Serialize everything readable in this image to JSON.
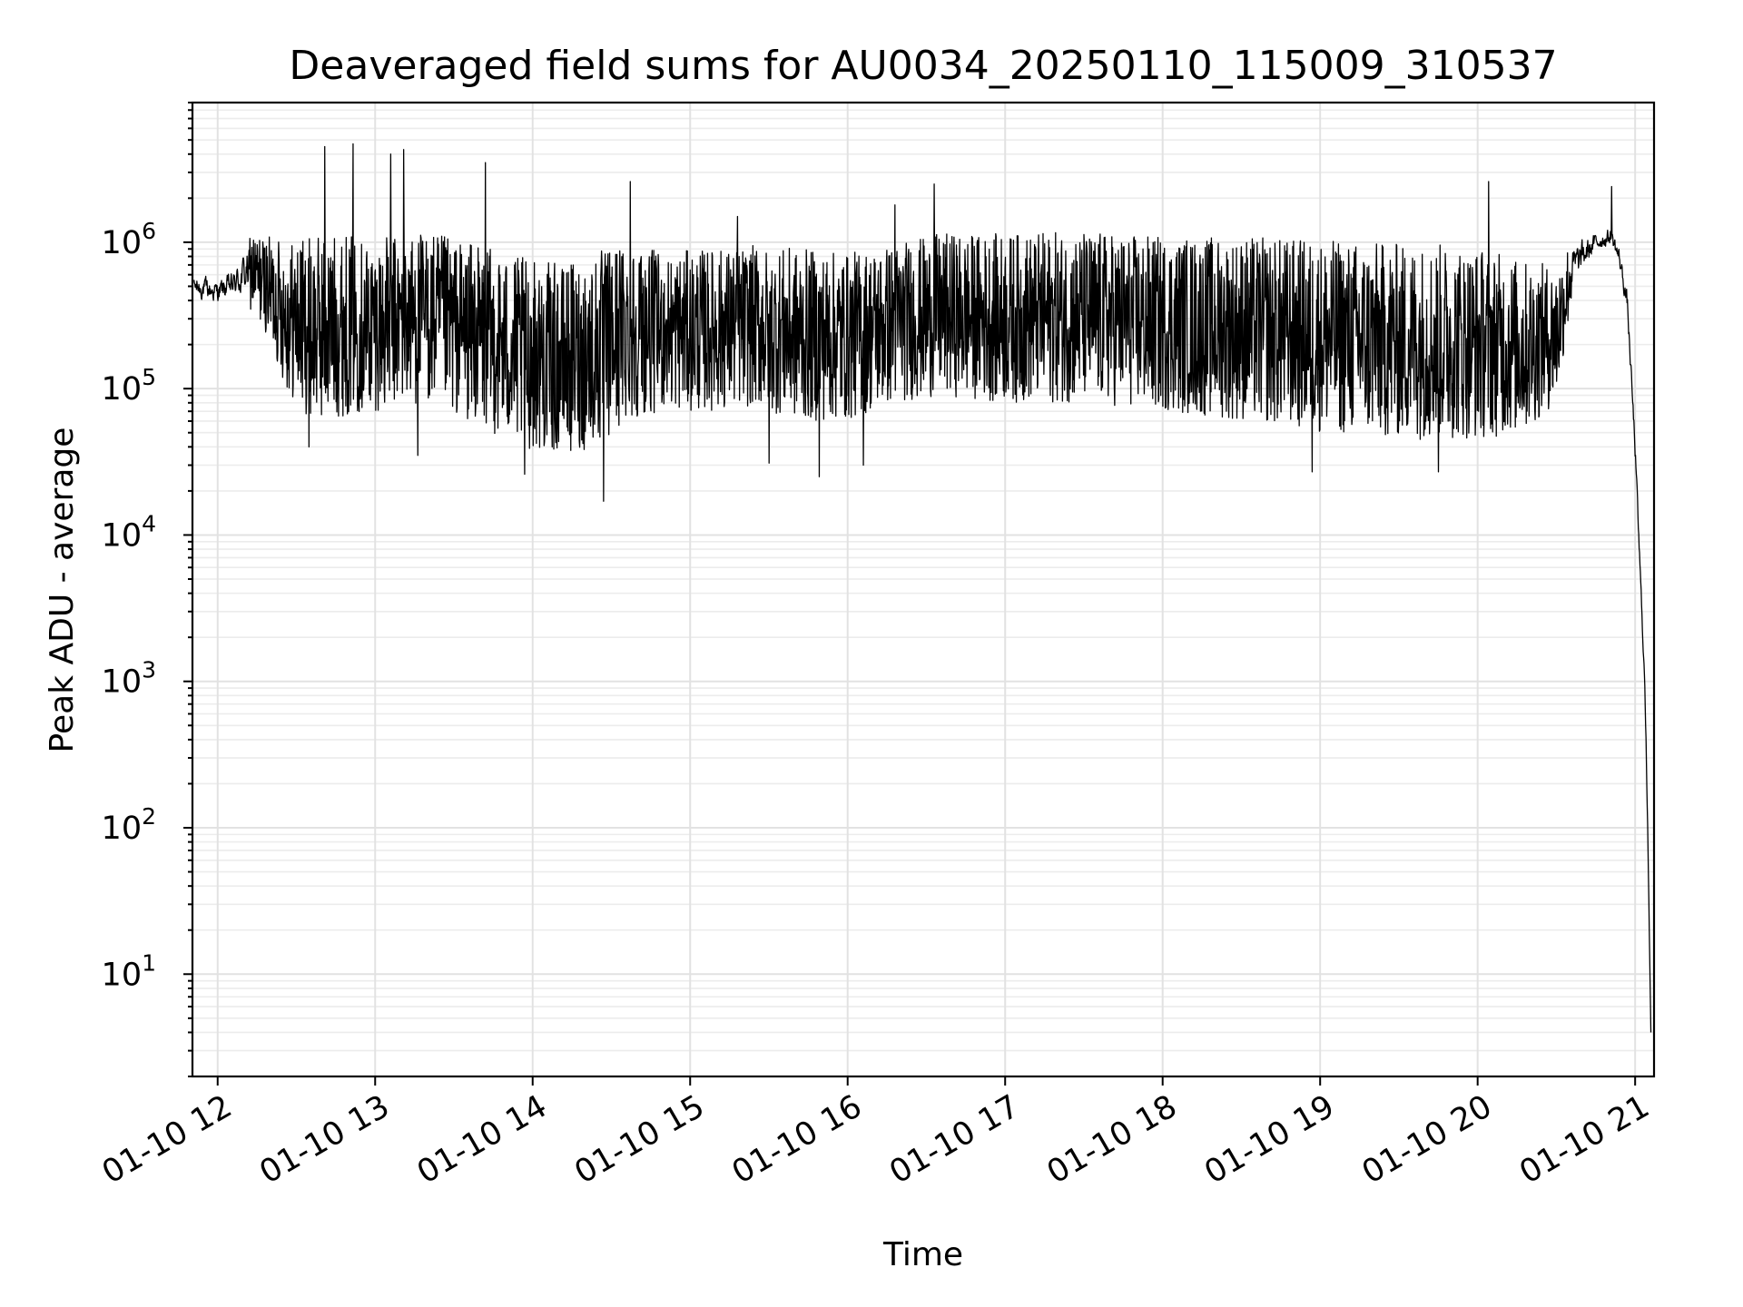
{
  "chart_data": {
    "type": "line",
    "title": "Deaveraged field sums for AU0034_20250110_115009_310537",
    "xlabel": "Time",
    "ylabel": "Peak ADU - average",
    "yscale": "log",
    "xlim": [
      "01-10 11:50:00",
      "01-10 21:05:00"
    ],
    "ylim": [
      2,
      9000000
    ],
    "x_ticks": [
      "01-10 12",
      "01-10 13",
      "01-10 14",
      "01-10 15",
      "01-10 16",
      "01-10 17",
      "01-10 18",
      "01-10 19",
      "01-10 20",
      "01-10 21"
    ],
    "x_tick_hours": [
      12,
      13,
      14,
      15,
      16,
      17,
      18,
      19,
      20,
      21
    ],
    "y_ticks": [
      {
        "base": "10",
        "exp": "1",
        "value": 10
      },
      {
        "base": "10",
        "exp": "2",
        "value": 100
      },
      {
        "base": "10",
        "exp": "3",
        "value": 1000
      },
      {
        "base": "10",
        "exp": "4",
        "value": 10000
      },
      {
        "base": "10",
        "exp": "5",
        "value": 100000
      },
      {
        "base": "10",
        "exp": "6",
        "value": 1000000
      }
    ],
    "grid": true,
    "line_color": "#000000",
    "series": [
      {
        "envelope_hours": [
          11.85,
          12.0,
          12.1,
          12.2,
          12.3,
          12.45,
          12.6,
          12.8,
          13.0,
          13.3,
          13.6,
          13.9,
          14.2,
          14.45,
          14.6,
          14.8,
          15.1,
          15.4,
          15.7,
          16.0,
          16.3,
          16.6,
          17.0,
          17.5,
          18.0,
          18.5,
          19.0,
          19.4,
          19.7,
          20.0,
          20.3,
          20.5,
          20.6,
          20.75,
          20.85,
          20.9,
          20.95,
          21.0,
          21.03,
          21.06,
          21.08,
          21.1
        ],
        "envelope_high": [
          650000,
          600000,
          700000,
          1200000,
          1100000,
          1050000,
          1100000,
          1150000,
          1050000,
          1200000,
          1000000,
          800000,
          700000,
          900000,
          1100000,
          850000,
          900000,
          950000,
          900000,
          850000,
          1000000,
          1150000,
          1150000,
          1200000,
          1100000,
          1100000,
          1050000,
          1000000,
          1000000,
          950000,
          750000,
          700000,
          1100000,
          1250000,
          1350000,
          1000000,
          500000,
          50000,
          8000,
          1200,
          150,
          4
        ],
        "envelope_low": [
          380000,
          350000,
          380000,
          350000,
          250000,
          90000,
          60000,
          65000,
          70000,
          80000,
          60000,
          40000,
          35000,
          40000,
          60000,
          70000,
          70000,
          75000,
          60000,
          60000,
          80000,
          90000,
          80000,
          80000,
          70000,
          60000,
          50000,
          45000,
          45000,
          45000,
          50000,
          80000,
          400000,
          800000,
          900000,
          600000,
          300000,
          30000,
          5000,
          900,
          80,
          4
        ],
        "spikes": [
          {
            "t": 12.68,
            "v": 4500000
          },
          {
            "t": 12.86,
            "v": 4700000
          },
          {
            "t": 13.1,
            "v": 4000000
          },
          {
            "t": 13.18,
            "v": 4300000
          },
          {
            "t": 13.7,
            "v": 3500000
          },
          {
            "t": 14.62,
            "v": 2600000
          },
          {
            "t": 15.3,
            "v": 1500000
          },
          {
            "t": 16.3,
            "v": 1800000
          },
          {
            "t": 16.55,
            "v": 2500000
          },
          {
            "t": 20.07,
            "v": 2600000
          },
          {
            "t": 20.85,
            "v": 2400000
          }
        ],
        "dips": [
          {
            "t": 12.58,
            "v": 40000
          },
          {
            "t": 13.27,
            "v": 35000
          },
          {
            "t": 13.95,
            "v": 26000
          },
          {
            "t": 14.45,
            "v": 17000
          },
          {
            "t": 15.5,
            "v": 31000
          },
          {
            "t": 15.82,
            "v": 25000
          },
          {
            "t": 16.1,
            "v": 30000
          },
          {
            "t": 18.95,
            "v": 27000
          },
          {
            "t": 19.75,
            "v": 27000
          }
        ]
      }
    ]
  }
}
